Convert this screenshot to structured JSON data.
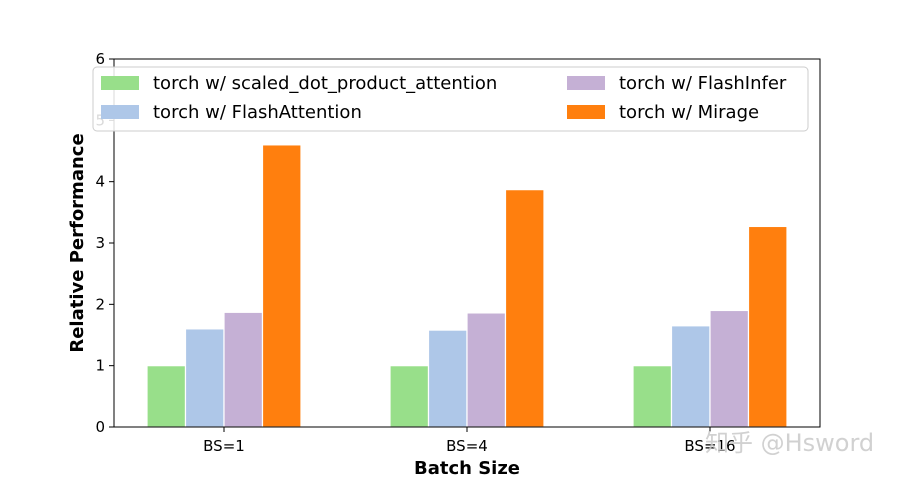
{
  "chart_data": {
    "type": "bar",
    "title": "",
    "xlabel": "Batch Size",
    "ylabel": "Relative Performance",
    "categories": [
      "BS=1",
      "BS=4",
      "BS=16"
    ],
    "ylim": [
      0,
      6
    ],
    "yticks": [
      0,
      1,
      2,
      3,
      4,
      5,
      6
    ],
    "grid": false,
    "legend_position": "top",
    "series": [
      {
        "name": "torch w/ scaled_dot_product_attention",
        "color": "#98df8a",
        "values": [
          1.0,
          1.0,
          1.0
        ]
      },
      {
        "name": "torch w/ FlashAttention",
        "color": "#aec7e8",
        "values": [
          1.6,
          1.58,
          1.65
        ]
      },
      {
        "name": "torch w/ FlashInfer",
        "color": "#c5b0d5",
        "values": [
          1.87,
          1.86,
          1.9
        ]
      },
      {
        "name": "torch w/ Mirage",
        "color": "#ff7f0e",
        "values": [
          4.6,
          3.87,
          3.27
        ]
      }
    ]
  },
  "watermark": {
    "text": "知乎 @Hsword"
  }
}
